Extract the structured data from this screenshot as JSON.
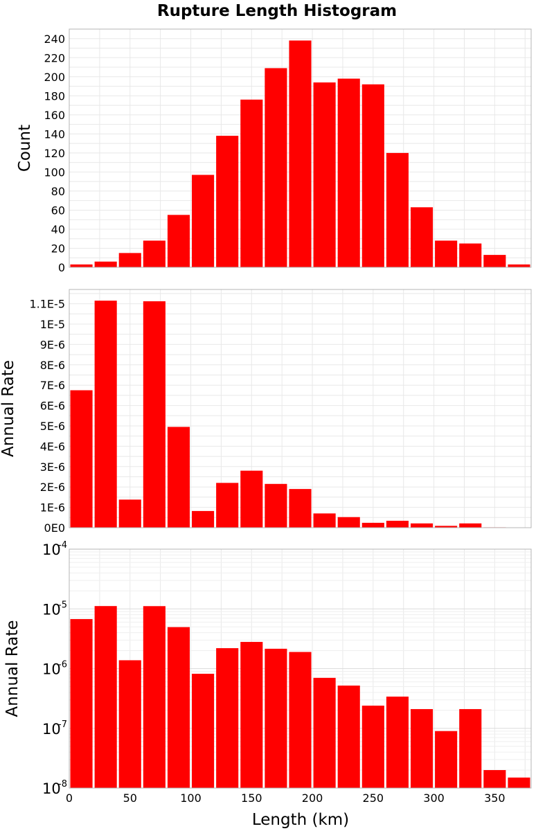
{
  "chart_data": {
    "title": "Rupture Length Histogram",
    "type": "bar",
    "x_range": [
      0,
      380
    ],
    "bin_width": 20,
    "x_centers": [
      10,
      30,
      50,
      70,
      90,
      110,
      130,
      150,
      170,
      190,
      210,
      230,
      250,
      270,
      290,
      310,
      330,
      350,
      370
    ],
    "x_ticks": [
      "0",
      "50",
      "100",
      "150",
      "200",
      "250",
      "300",
      "350"
    ],
    "x_tick_values": [
      0,
      50,
      100,
      150,
      200,
      250,
      300,
      350
    ],
    "xlabel": "Length (km)",
    "bar_color": "#ff0000",
    "grid": true,
    "panels": [
      {
        "ylabel": "Count",
        "scale": "linear",
        "ylim": [
          0,
          250
        ],
        "y_ticks": [
          "0",
          "20",
          "40",
          "60",
          "80",
          "100",
          "120",
          "140",
          "160",
          "180",
          "200",
          "220",
          "240"
        ],
        "y_tick_values": [
          0,
          20,
          40,
          60,
          80,
          100,
          120,
          140,
          160,
          180,
          200,
          220,
          240
        ],
        "values": [
          3,
          6,
          15,
          28,
          55,
          97,
          138,
          176,
          209,
          238,
          194,
          198,
          192,
          120,
          63,
          28,
          25,
          13,
          3
        ]
      },
      {
        "ylabel": "Annual Rate",
        "scale": "linear",
        "ylim": [
          0,
          1.17e-05
        ],
        "y_ticks": [
          "0E0",
          "1E-6",
          "2E-6",
          "3E-6",
          "4E-6",
          "5E-6",
          "6E-6",
          "7E-6",
          "8E-6",
          "9E-6",
          "1E-5",
          "1.1E-5"
        ],
        "y_tick_values": [
          0,
          1e-06,
          2e-06,
          3e-06,
          4e-06,
          5e-06,
          6e-06,
          7e-06,
          8e-06,
          9e-06,
          1e-05,
          1.1e-05
        ],
        "values": [
          6.75e-06,
          1.115e-05,
          1.38e-06,
          1.112e-05,
          4.95e-06,
          8.2e-07,
          2.2e-06,
          2.8e-06,
          2.15e-06,
          1.9e-06,
          7e-07,
          5.2e-07,
          2.4e-07,
          3.4e-07,
          2.1e-07,
          9e-08,
          2.1e-07,
          2e-08,
          1.5e-08
        ]
      },
      {
        "ylabel": "Annual Rate",
        "scale": "log",
        "ylim": [
          1e-08,
          0.0001
        ],
        "y_ticks": [
          {
            "base": "10",
            "exp": "-8"
          },
          {
            "base": "10",
            "exp": "-7"
          },
          {
            "base": "10",
            "exp": "-6"
          },
          {
            "base": "10",
            "exp": "-5"
          },
          {
            "base": "10",
            "exp": "-4"
          }
        ],
        "y_tick_values": [
          1e-08,
          1e-07,
          1e-06,
          1e-05,
          0.0001
        ],
        "values": [
          6.75e-06,
          1.115e-05,
          1.38e-06,
          1.112e-05,
          4.95e-06,
          8.2e-07,
          2.2e-06,
          2.8e-06,
          2.15e-06,
          1.9e-06,
          7e-07,
          5.2e-07,
          2.4e-07,
          3.4e-07,
          2.1e-07,
          9e-08,
          2.1e-07,
          2e-08,
          1.5e-08
        ]
      }
    ]
  }
}
